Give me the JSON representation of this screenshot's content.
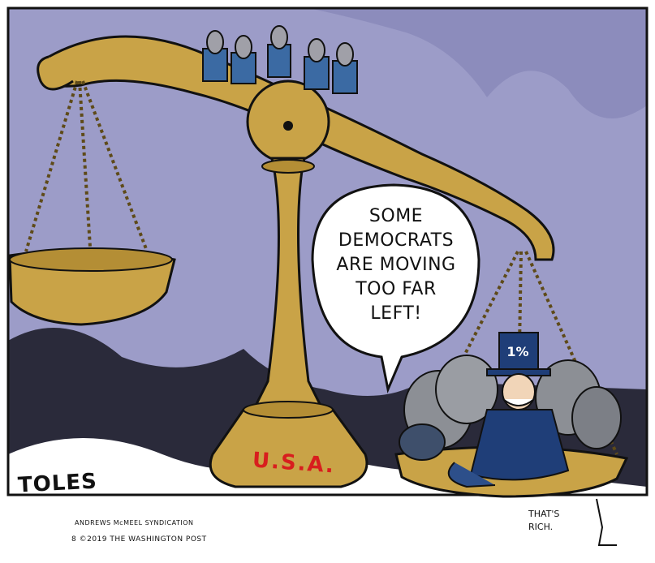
{
  "cartoon": {
    "speech_bubble": [
      "SOME",
      "DEMOCRATS",
      "ARE MOVING",
      "TOO FAR",
      "LEFT!"
    ],
    "hat_label": "1%",
    "base_label": "U.S.A.",
    "signature": "TOLES",
    "syndication": "ANDREWS McMEEL SYNDICATION",
    "copyright": "8 ©2019 THE WASHINGTON POST",
    "aside": [
      "THAT'S",
      "RICH."
    ]
  },
  "colors": {
    "background": "#9c9cc8",
    "brass": "#c9a347",
    "brass_dark": "#8c6a1e",
    "usa_red": "#d81e1e",
    "donkey_blue": "#3b6aa3",
    "elephant_gray": "#8c8f95",
    "ink": "#111111"
  }
}
